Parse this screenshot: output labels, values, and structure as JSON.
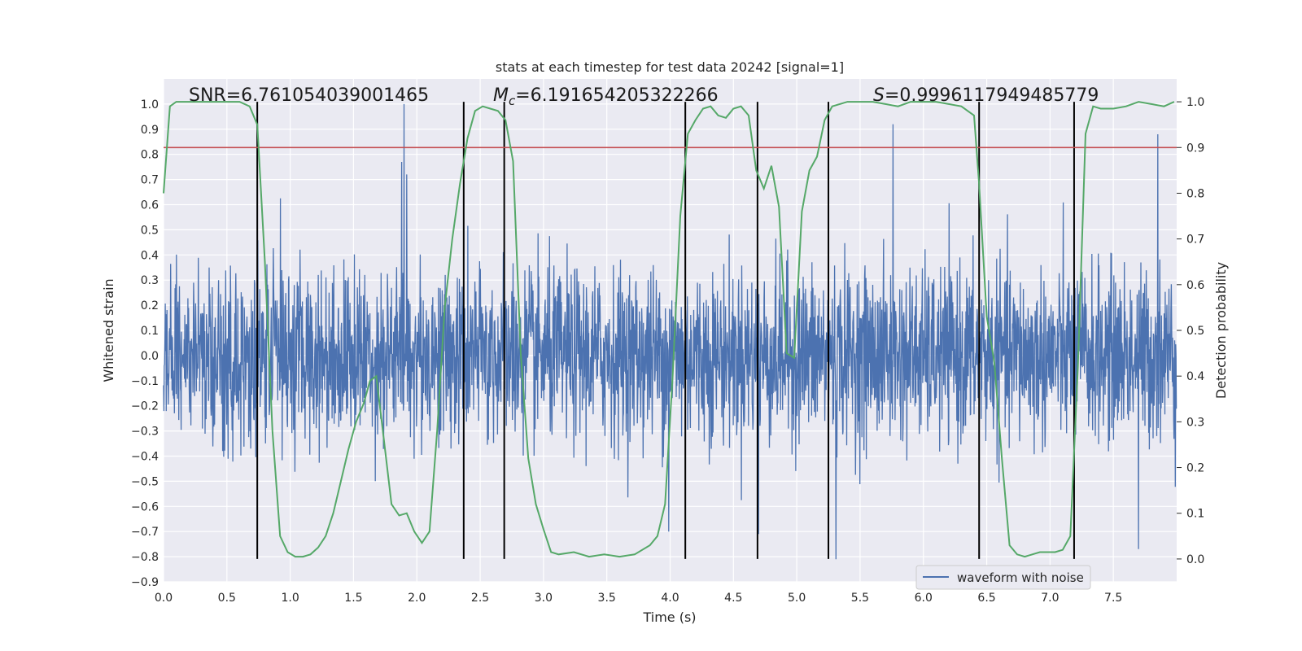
{
  "chart_data": {
    "type": "line",
    "title": "stats at each timestep for test data 20242 [signal=1]",
    "xlabel": "Time (s)",
    "ylabel": "Whitened strain",
    "y2label": "Detection probability",
    "xlim": [
      0.0,
      8.0
    ],
    "ylim": [
      -0.9,
      1.1
    ],
    "y2lim": [
      -0.05,
      1.05
    ],
    "xticks": [
      0.0,
      0.5,
      1.0,
      1.5,
      2.0,
      2.5,
      3.0,
      3.5,
      4.0,
      4.5,
      5.0,
      5.5,
      6.0,
      6.5,
      7.0,
      7.5
    ],
    "xtick_labels": [
      "0.0",
      "0.5",
      "1.0",
      "1.5",
      "2.0",
      "2.5",
      "3.0",
      "3.5",
      "4.0",
      "4.5",
      "5.0",
      "5.5",
      "6.0",
      "6.5",
      "7.0",
      "7.5"
    ],
    "yticks": [
      -0.9,
      -0.8,
      -0.7,
      -0.6,
      -0.5,
      -0.4,
      -0.3,
      -0.2,
      -0.1,
      0.0,
      0.1,
      0.2,
      0.3,
      0.4,
      0.5,
      0.6,
      0.7,
      0.8,
      0.9,
      1.0
    ],
    "ytick_labels": [
      "−0.9",
      "−0.8",
      "−0.7",
      "−0.6",
      "−0.5",
      "−0.4",
      "−0.3",
      "−0.2",
      "−0.1",
      "0.0",
      "0.1",
      "0.2",
      "0.3",
      "0.4",
      "0.5",
      "0.6",
      "0.7",
      "0.8",
      "0.9",
      "1.0"
    ],
    "y2ticks": [
      0.0,
      0.1,
      0.2,
      0.3,
      0.4,
      0.5,
      0.6,
      0.7,
      0.8,
      0.9,
      1.0
    ],
    "y2tick_labels": [
      "0.0",
      "0.1",
      "0.2",
      "0.3",
      "0.4",
      "0.5",
      "0.6",
      "0.7",
      "0.8",
      "0.9",
      "1.0"
    ],
    "grid": true,
    "legend_position": "lower-right",
    "annotations": {
      "snr": "SNR=6.761054039001465",
      "mc_symbol": "M",
      "mc_sub": "c",
      "mc_value": "=6.191654205322266",
      "s_symbol": "S",
      "s_value": "=0.9996117949485779"
    },
    "threshold": 0.9,
    "vertical_lines": [
      0.74,
      2.37,
      2.69,
      4.12,
      4.69,
      5.25,
      6.44,
      7.19
    ],
    "waveform_samples": 3000,
    "waveform_spikes": [
      {
        "t": 1.9,
        "v": 1.0
      },
      {
        "t": 1.88,
        "v": 0.77
      },
      {
        "t": 1.92,
        "v": 0.72
      },
      {
        "t": 5.76,
        "v": 0.92
      },
      {
        "t": 7.85,
        "v": 0.88
      },
      {
        "t": 3.99,
        "v": -0.7
      },
      {
        "t": 4.7,
        "v": -0.71
      },
      {
        "t": 5.31,
        "v": -0.81
      },
      {
        "t": 7.7,
        "v": -0.77
      }
    ],
    "series": [
      {
        "name": "waveform with noise",
        "color": "#4c72b0",
        "kind": "waveform"
      },
      {
        "name": "",
        "color": "#55a868",
        "axis": "right",
        "x": [
          0.0,
          0.05,
          0.1,
          0.15,
          0.2,
          0.3,
          0.4,
          0.5,
          0.6,
          0.68,
          0.74,
          0.8,
          0.86,
          0.92,
          0.98,
          1.04,
          1.1,
          1.16,
          1.22,
          1.28,
          1.34,
          1.4,
          1.46,
          1.52,
          1.58,
          1.63,
          1.68,
          1.74,
          1.8,
          1.86,
          1.92,
          1.98,
          2.04,
          2.1,
          2.16,
          2.22,
          2.28,
          2.34,
          2.4,
          2.46,
          2.52,
          2.58,
          2.64,
          2.7,
          2.76,
          2.82,
          2.88,
          2.94,
          3.0,
          3.06,
          3.12,
          3.24,
          3.36,
          3.48,
          3.6,
          3.72,
          3.84,
          3.9,
          3.96,
          4.02,
          4.08,
          4.14,
          4.2,
          4.26,
          4.32,
          4.38,
          4.44,
          4.5,
          4.56,
          4.62,
          4.68,
          4.74,
          4.8,
          4.86,
          4.92,
          4.98,
          5.04,
          5.1,
          5.16,
          5.22,
          5.28,
          5.34,
          5.4,
          5.5,
          5.6,
          5.7,
          5.8,
          5.9,
          6.0,
          6.1,
          6.2,
          6.3,
          6.4,
          6.44,
          6.5,
          6.56,
          6.62,
          6.68,
          6.74,
          6.8,
          6.86,
          6.92,
          6.98,
          7.04,
          7.1,
          7.16,
          7.22,
          7.28,
          7.34,
          7.4,
          7.5,
          7.6,
          7.7,
          7.8,
          7.9,
          7.98
        ],
        "values": [
          0.8,
          0.99,
          1.0,
          1.0,
          1.0,
          1.0,
          1.0,
          1.0,
          1.0,
          0.99,
          0.95,
          0.65,
          0.28,
          0.05,
          0.015,
          0.005,
          0.005,
          0.01,
          0.025,
          0.05,
          0.1,
          0.17,
          0.24,
          0.3,
          0.34,
          0.39,
          0.4,
          0.26,
          0.12,
          0.095,
          0.1,
          0.06,
          0.035,
          0.06,
          0.28,
          0.55,
          0.7,
          0.82,
          0.92,
          0.98,
          0.99,
          0.985,
          0.98,
          0.96,
          0.87,
          0.45,
          0.22,
          0.12,
          0.065,
          0.015,
          0.01,
          0.015,
          0.005,
          0.01,
          0.005,
          0.01,
          0.03,
          0.05,
          0.12,
          0.4,
          0.75,
          0.93,
          0.96,
          0.985,
          0.99,
          0.97,
          0.965,
          0.985,
          0.99,
          0.97,
          0.85,
          0.81,
          0.86,
          0.77,
          0.45,
          0.44,
          0.76,
          0.85,
          0.88,
          0.96,
          0.99,
          0.995,
          1.0,
          1.0,
          1.0,
          0.995,
          0.99,
          1.0,
          1.0,
          1.0,
          0.995,
          0.99,
          0.97,
          0.82,
          0.53,
          0.43,
          0.22,
          0.03,
          0.01,
          0.005,
          0.01,
          0.015,
          0.015,
          0.015,
          0.02,
          0.05,
          0.42,
          0.93,
          0.99,
          0.985,
          0.985,
          0.99,
          1.0,
          0.995,
          0.99,
          1.0
        ]
      }
    ]
  },
  "colors": {
    "plot_bg": "#eaeaf2",
    "grid": "#ffffff",
    "waveform": "#4c72b0",
    "probability": "#55a868",
    "threshold": "#c44e52",
    "vline": "#000000"
  }
}
